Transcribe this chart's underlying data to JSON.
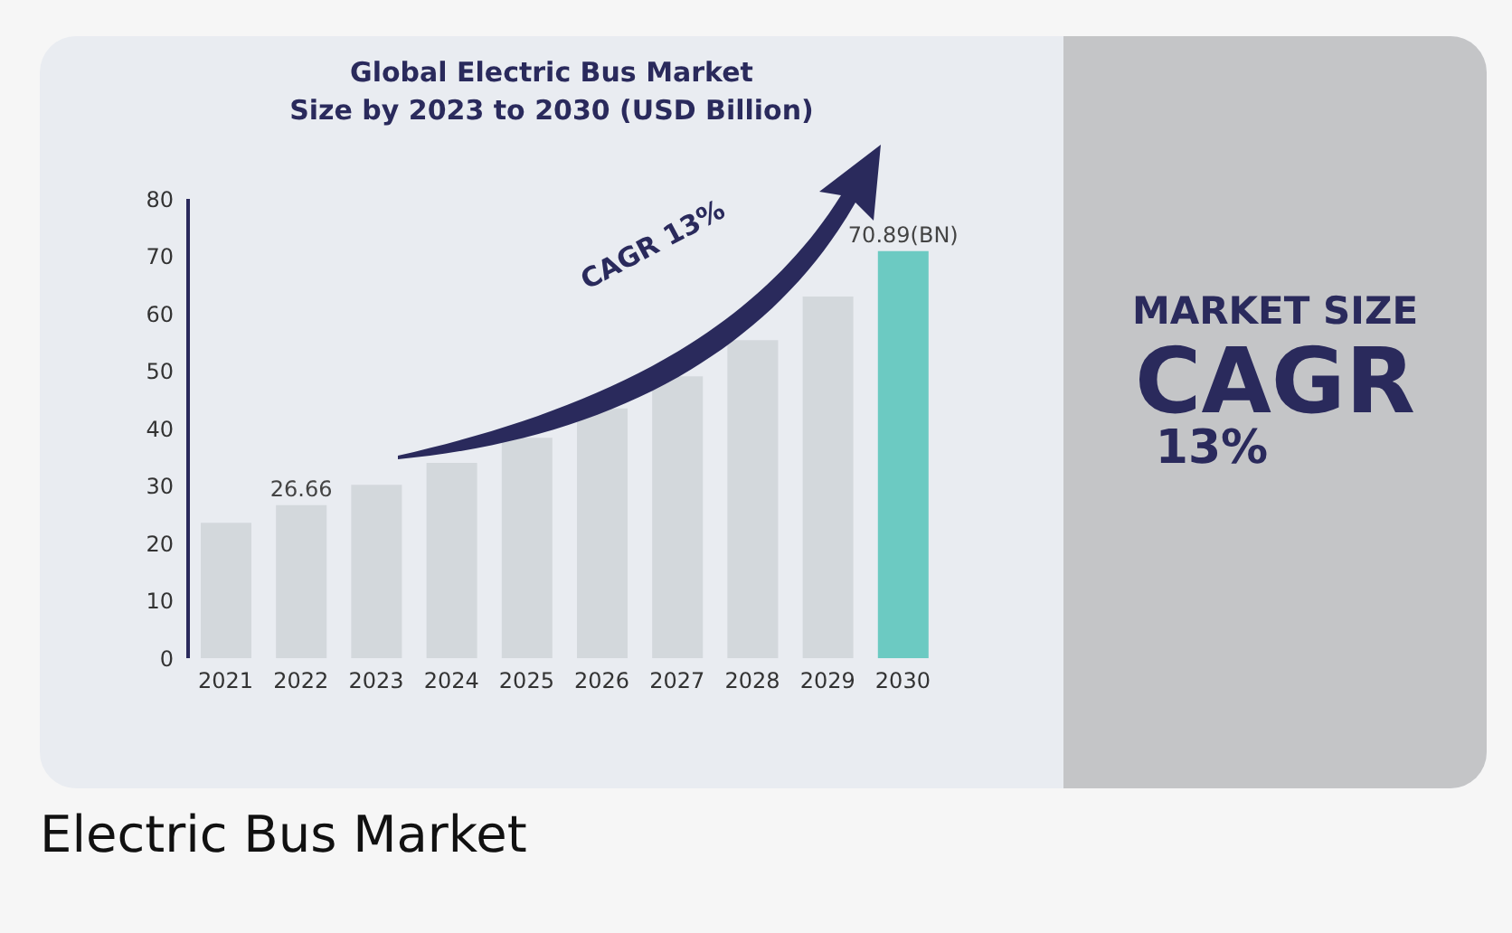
{
  "chart_data": {
    "type": "bar",
    "title": "Global Electric Bus Market\nSize by 2023 to 2030 (USD Billion)",
    "categories": [
      "2021",
      "2022",
      "2023",
      "2024",
      "2025",
      "2026",
      "2027",
      "2028",
      "2029",
      "2030"
    ],
    "values": [
      23.6,
      26.66,
      30.2,
      34,
      38.4,
      43.5,
      49.1,
      55.4,
      63,
      70.89
    ],
    "colors": [
      "#d3d8dc",
      "#d3d8dc",
      "#d3d8dc",
      "#d3d8dc",
      "#d3d8dc",
      "#d3d8dc",
      "#d3d8dc",
      "#d3d8dc",
      "#d3d8dc",
      "#6ccac2"
    ],
    "value_labels": [
      null,
      "26.66",
      null,
      null,
      null,
      null,
      null,
      null,
      null,
      "70.89(BN)"
    ],
    "ylim": [
      0,
      80
    ],
    "yticks": [
      0,
      10,
      20,
      30,
      40,
      50,
      60,
      70,
      80
    ],
    "annotations": [
      "CAGR 13%",
      "MARKET SIZE",
      "CAGR",
      "13%",
      "Electric Bus Market"
    ]
  }
}
